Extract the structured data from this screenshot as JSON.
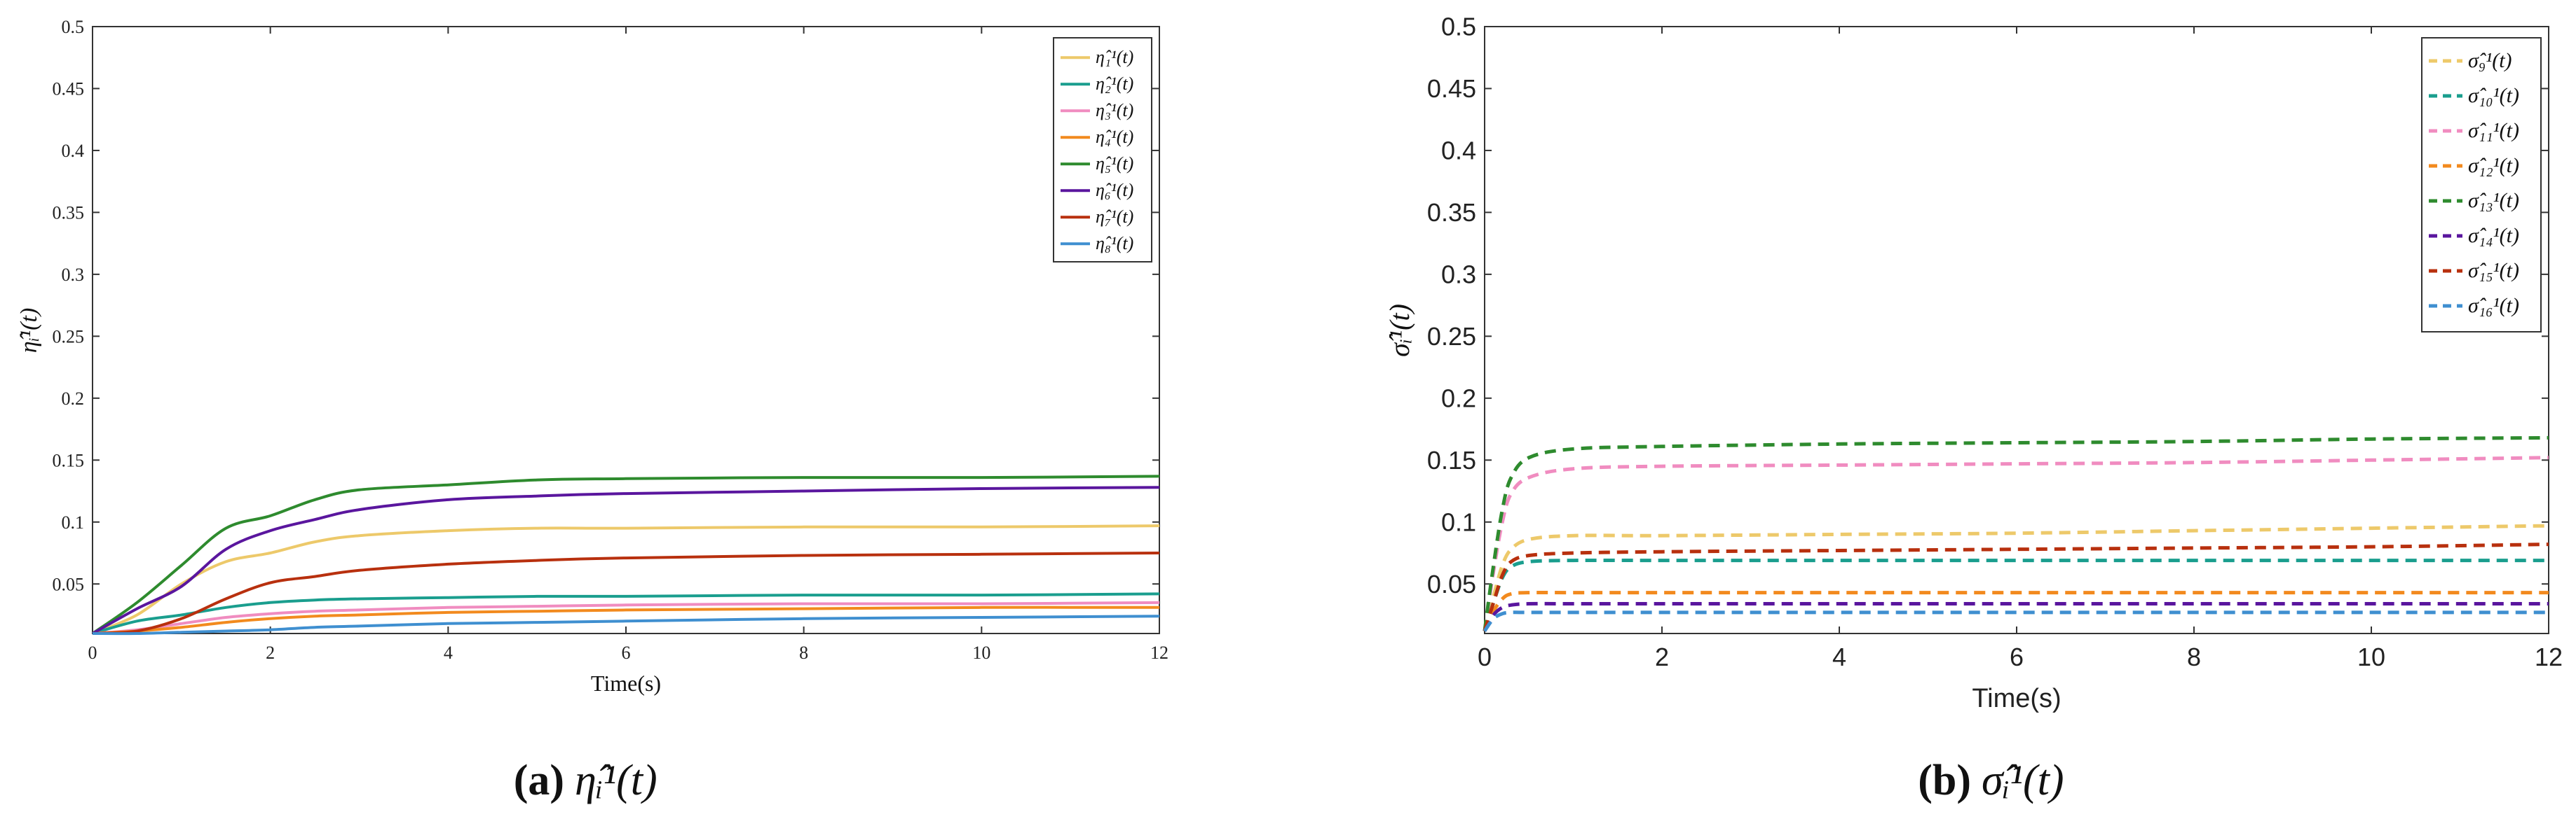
{
  "chart_data": [
    {
      "type": "line",
      "xlabel": "Time(s)",
      "ylabel": "η̂ᵢ¹(t)",
      "xlim": [
        0,
        12
      ],
      "ylim": [
        0.01,
        0.5
      ],
      "xticks": [
        "0",
        "2",
        "4",
        "6",
        "8",
        "10",
        "12"
      ],
      "yticks": [
        "0.05",
        "0.1",
        "0.15",
        "0.2",
        "0.25",
        "0.3",
        "0.35",
        "0.4",
        "0.45",
        "0.5"
      ],
      "grid": false,
      "legend_position": "top-right",
      "caption_label": "(a)",
      "caption_symbol": "η̂ᵢ¹(t)",
      "series": [
        {
          "name": "η̂₁¹(t)",
          "color": "#EDC96A",
          "style": "solid",
          "x": [
            0,
            0.5,
            1,
            1.5,
            2,
            2.5,
            3,
            4,
            5,
            6,
            8,
            10,
            12
          ],
          "values": [
            0.01,
            0.025,
            0.05,
            0.068,
            0.075,
            0.084,
            0.089,
            0.093,
            0.095,
            0.095,
            0.096,
            0.096,
            0.097
          ]
        },
        {
          "name": "η̂₂¹(t)",
          "color": "#1A9E8E",
          "style": "solid",
          "x": [
            0,
            0.5,
            1,
            1.5,
            2,
            2.5,
            3,
            4,
            5,
            6,
            8,
            10,
            12
          ],
          "values": [
            0.01,
            0.02,
            0.025,
            0.031,
            0.035,
            0.037,
            0.038,
            0.039,
            0.04,
            0.04,
            0.041,
            0.041,
            0.042
          ]
        },
        {
          "name": "η̂₃¹(t)",
          "color": "#F08CC0",
          "style": "solid",
          "x": [
            0,
            0.5,
            1,
            1.5,
            2,
            2.5,
            3,
            4,
            5,
            6,
            8,
            10,
            12
          ],
          "values": [
            0.01,
            0.013,
            0.018,
            0.023,
            0.026,
            0.028,
            0.029,
            0.031,
            0.032,
            0.033,
            0.034,
            0.034,
            0.035
          ]
        },
        {
          "name": "η̂₄¹(t)",
          "color": "#F28A1E",
          "style": "solid",
          "x": [
            0,
            0.5,
            1,
            1.5,
            2,
            2.5,
            3,
            4,
            5,
            6,
            8,
            10,
            12
          ],
          "values": [
            0.01,
            0.012,
            0.015,
            0.019,
            0.022,
            0.024,
            0.025,
            0.027,
            0.028,
            0.029,
            0.03,
            0.031,
            0.031
          ]
        },
        {
          "name": "η̂₅¹(t)",
          "color": "#2E8B2E",
          "style": "solid",
          "x": [
            0,
            0.5,
            1,
            1.5,
            2,
            2.5,
            3,
            4,
            5,
            6,
            8,
            10,
            12
          ],
          "values": [
            0.01,
            0.035,
            0.065,
            0.095,
            0.105,
            0.118,
            0.126,
            0.13,
            0.134,
            0.135,
            0.136,
            0.136,
            0.137
          ]
        },
        {
          "name": "η̂₆¹(t)",
          "color": "#5A169E",
          "style": "solid",
          "x": [
            0,
            0.5,
            1,
            1.5,
            2,
            2.5,
            3,
            4,
            5,
            6,
            8,
            10,
            12
          ],
          "values": [
            0.01,
            0.03,
            0.048,
            0.078,
            0.093,
            0.102,
            0.11,
            0.118,
            0.121,
            0.123,
            0.125,
            0.127,
            0.128
          ]
        },
        {
          "name": "η̂₇¹(t)",
          "color": "#B8300E",
          "style": "solid",
          "x": [
            0,
            0.5,
            1,
            1.5,
            2,
            2.5,
            3,
            4,
            5,
            6,
            8,
            10,
            12
          ],
          "values": [
            0.01,
            0.012,
            0.022,
            0.038,
            0.051,
            0.056,
            0.061,
            0.066,
            0.069,
            0.071,
            0.073,
            0.074,
            0.075
          ]
        },
        {
          "name": "η̂₈¹(t)",
          "color": "#3F8FD0",
          "style": "solid",
          "x": [
            0,
            0.5,
            1,
            1.5,
            2,
            2.5,
            3,
            4,
            5,
            6,
            8,
            10,
            12
          ],
          "values": [
            0.01,
            0.01,
            0.011,
            0.012,
            0.013,
            0.015,
            0.016,
            0.018,
            0.019,
            0.02,
            0.022,
            0.023,
            0.024
          ]
        }
      ]
    },
    {
      "type": "line",
      "xlabel": "Time(s)",
      "ylabel": "σ̂ᵢ¹(t)",
      "xlim": [
        0,
        12
      ],
      "ylim": [
        0.01,
        0.5
      ],
      "xticks": [
        "0",
        "2",
        "4",
        "6",
        "8",
        "10",
        "12"
      ],
      "yticks": [
        "0.05",
        "0.1",
        "0.15",
        "0.2",
        "0.25",
        "0.3",
        "0.35",
        "0.4",
        "0.45",
        "0.5"
      ],
      "grid": false,
      "legend_position": "top-right",
      "caption_label": "(b)",
      "caption_symbol": "σ̂ᵢ¹(t)",
      "series": [
        {
          "name": "σ̂₉¹(t)",
          "color": "#EDC96A",
          "style": "dashed",
          "x": [
            0,
            0.1,
            0.2,
            0.3,
            0.5,
            1,
            2,
            4,
            6,
            8,
            10,
            12
          ],
          "values": [
            0.012,
            0.04,
            0.065,
            0.078,
            0.086,
            0.089,
            0.089,
            0.09,
            0.091,
            0.093,
            0.095,
            0.097
          ]
        },
        {
          "name": "σ̂₁₀¹(t)",
          "color": "#1A9E8E",
          "style": "dashed",
          "x": [
            0,
            0.1,
            0.2,
            0.3,
            0.5,
            1,
            2,
            4,
            6,
            8,
            10,
            12
          ],
          "values": [
            0.012,
            0.035,
            0.055,
            0.064,
            0.068,
            0.069,
            0.069,
            0.069,
            0.069,
            0.069,
            0.069,
            0.069
          ]
        },
        {
          "name": "σ̂₁₁¹(t)",
          "color": "#F08CC0",
          "style": "dashed",
          "x": [
            0,
            0.1,
            0.2,
            0.3,
            0.5,
            1,
            2,
            4,
            6,
            8,
            10,
            12
          ],
          "values": [
            0.012,
            0.06,
            0.1,
            0.123,
            0.136,
            0.143,
            0.145,
            0.146,
            0.147,
            0.148,
            0.15,
            0.152
          ]
        },
        {
          "name": "σ̂₁₂¹(t)",
          "color": "#F28A1E",
          "style": "dashed",
          "x": [
            0,
            0.1,
            0.2,
            0.3,
            0.5,
            1,
            2,
            4,
            6,
            8,
            10,
            12
          ],
          "values": [
            0.012,
            0.028,
            0.038,
            0.042,
            0.043,
            0.043,
            0.043,
            0.043,
            0.043,
            0.043,
            0.043,
            0.043
          ]
        },
        {
          "name": "σ̂₁₃¹(t)",
          "color": "#2E8B2E",
          "style": "dashed",
          "x": [
            0,
            0.1,
            0.2,
            0.3,
            0.5,
            1,
            2,
            4,
            6,
            8,
            10,
            12
          ],
          "values": [
            0.012,
            0.065,
            0.11,
            0.136,
            0.152,
            0.159,
            0.161,
            0.163,
            0.164,
            0.165,
            0.167,
            0.168
          ]
        },
        {
          "name": "σ̂₁₄¹(t)",
          "color": "#5A169E",
          "style": "dashed",
          "x": [
            0,
            0.1,
            0.2,
            0.3,
            0.5,
            1,
            2,
            4,
            6,
            8,
            10,
            12
          ],
          "values": [
            0.012,
            0.025,
            0.031,
            0.033,
            0.034,
            0.034,
            0.034,
            0.034,
            0.034,
            0.034,
            0.034,
            0.034
          ]
        },
        {
          "name": "σ̂₁₅¹(t)",
          "color": "#B8300E",
          "style": "dashed",
          "x": [
            0,
            0.1,
            0.2,
            0.3,
            0.5,
            1,
            2,
            4,
            6,
            8,
            10,
            12
          ],
          "values": [
            0.012,
            0.035,
            0.057,
            0.068,
            0.073,
            0.075,
            0.076,
            0.077,
            0.078,
            0.079,
            0.08,
            0.082
          ]
        },
        {
          "name": "σ̂₁₆¹(t)",
          "color": "#3F8FD0",
          "style": "dashed",
          "x": [
            0,
            0.1,
            0.2,
            0.3,
            0.5,
            1,
            2,
            4,
            6,
            8,
            10,
            12
          ],
          "values": [
            0.012,
            0.022,
            0.026,
            0.027,
            0.027,
            0.027,
            0.027,
            0.027,
            0.027,
            0.027,
            0.027,
            0.027
          ]
        }
      ]
    }
  ]
}
